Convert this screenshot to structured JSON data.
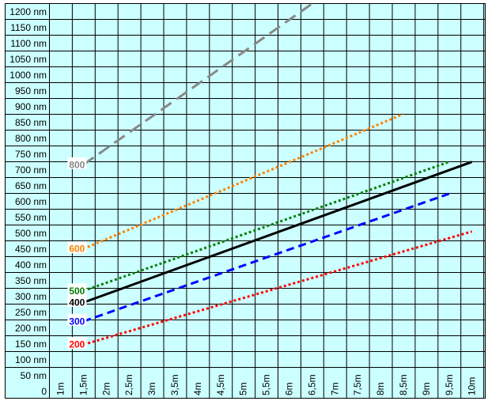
{
  "chart_data": {
    "type": "line",
    "title": "",
    "xlabel": "",
    "ylabel": "",
    "x_ticks": [
      "1m",
      "1,5m",
      "2m",
      "2,5m",
      "3m",
      "3,5m",
      "4m",
      "4,5m",
      "5m",
      "5,5m",
      "6m",
      "6,5m",
      "7m",
      "7,5m",
      "8m",
      "8,5m",
      "9m",
      "9,5m",
      "10m"
    ],
    "y_ticks": [
      "0",
      "50 nm",
      "100 nm",
      "150 nm",
      "200 nm",
      "250 nm",
      "300 nm",
      "350 nm",
      "400 nm",
      "450 nm",
      "500 nm",
      "550 nm",
      "600 nm",
      "650 nm",
      "700 nm",
      "750 nm",
      "800 nm",
      "850 nm",
      "900 nm",
      "950 nm",
      "1000 nm",
      "1050 nm",
      "1100 nm",
      "1150 nm",
      "1200 nm"
    ],
    "xlim": [
      0.5,
      10
    ],
    "ylim": [
      0,
      1200
    ],
    "grid": true,
    "series": [
      {
        "name": "200",
        "color": "#ff0000",
        "style": "dotted",
        "x": [
          1.5,
          10
        ],
        "y": [
          50,
          440
        ]
      },
      {
        "name": "300",
        "color": "#0000ff",
        "style": "dashed",
        "x": [
          1.5,
          9.5
        ],
        "y": [
          130,
          570
        ]
      },
      {
        "name": "400",
        "color": "#000000",
        "style": "solid",
        "x": [
          1.5,
          10
        ],
        "y": [
          195,
          680
        ]
      },
      {
        "name": "500",
        "color": "#007f00",
        "style": "dotted",
        "x": [
          1.5,
          9.5
        ],
        "y": [
          235,
          680
        ]
      },
      {
        "name": "600",
        "color": "#ff8000",
        "style": "dotted",
        "x": [
          1.5,
          8.5
        ],
        "y": [
          380,
          845
        ]
      },
      {
        "name": "800",
        "color": "#888888",
        "style": "longdash",
        "x": [
          1.5,
          6.5
        ],
        "y": [
          670,
          1225
        ]
      }
    ]
  },
  "colors": {
    "plot_background": "#ccffff",
    "grid": "#000000",
    "label_column_background": "#ccffff",
    "series_label_background": "#ffffff"
  }
}
